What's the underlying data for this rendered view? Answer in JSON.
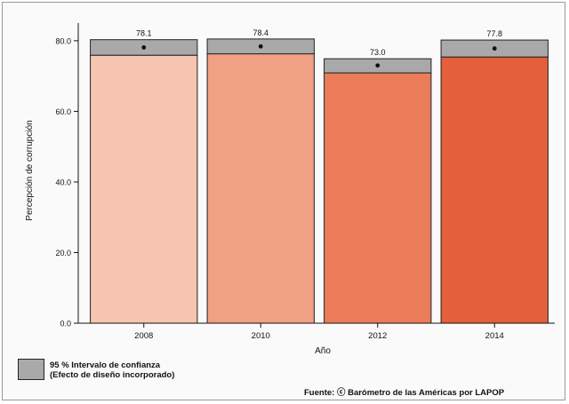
{
  "chart_data": {
    "type": "bar",
    "categories": [
      "2008",
      "2010",
      "2012",
      "2014"
    ],
    "values": [
      78.1,
      78.4,
      73.0,
      77.8
    ],
    "value_labels": [
      "78.1",
      "78.4",
      "73.0",
      "77.8"
    ],
    "ci": [
      [
        75.9,
        80.3
      ],
      [
        76.3,
        80.5
      ],
      [
        70.9,
        74.9
      ],
      [
        75.4,
        80.2
      ]
    ],
    "colors": [
      "#f6c4b0",
      "#f0a083",
      "#eb7d5b",
      "#e3603a"
    ],
    "ci_color": "#a9a9a9",
    "xlabel": "Año",
    "ylabel": "Percepción de corrupción",
    "ylim": [
      0,
      85
    ],
    "yticks": [
      0,
      20,
      40,
      60,
      80
    ],
    "ytick_labels": [
      "0.0",
      "20.0",
      "40.0",
      "60.0",
      "80.0"
    ]
  },
  "legend": {
    "line1": "95 % Intervalo de confianza",
    "line2": "(Efecto de diseño incorporado)"
  },
  "source": "Fuente: ⓒ Barómetro de las Américas por LAPOP"
}
